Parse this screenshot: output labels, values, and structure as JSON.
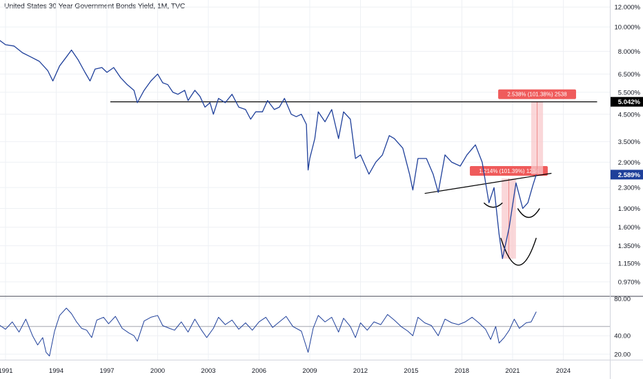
{
  "title": "United States 30 Year Government Bonds Yield, 1M, TVC",
  "colors": {
    "series": "#1e3f9a",
    "guide": "#000000",
    "measure_fill": "#f8c9cc",
    "measure_label": "#ef5b5b",
    "price_badge": "#1e3f9a",
    "grid": "#eef0f4",
    "axis_text": "#131722"
  },
  "chart_data": {
    "type": "line",
    "x_tick_labels": [
      "1991",
      "1994",
      "1997",
      "2000",
      "2003",
      "2006",
      "2009",
      "2012",
      "2015",
      "2018",
      "2021",
      "2024"
    ],
    "main_pane": {
      "scale": "log",
      "y_tick_labels": [
        "12.000%",
        "10.000%",
        "8.000%",
        "6.500%",
        "5.500%",
        "4.500%",
        "3.500%",
        "2.900%",
        "2.300%",
        "1.900%",
        "1.600%",
        "1.350%",
        "1.150%",
        "0.970%"
      ],
      "y_ticks": [
        12.0,
        10.0,
        8.0,
        6.5,
        5.5,
        4.5,
        3.5,
        2.9,
        2.3,
        1.9,
        1.6,
        1.35,
        1.15,
        0.97
      ],
      "ylim": [
        0.85,
        12.8
      ],
      "series": [
        {
          "points": [
            [
              1990.6,
              8.9
            ],
            [
              1991.0,
              8.5
            ],
            [
              1991.5,
              8.4
            ],
            [
              1992.0,
              7.9
            ],
            [
              1992.5,
              7.6
            ],
            [
              1993.0,
              7.3
            ],
            [
              1993.5,
              6.7
            ],
            [
              1993.8,
              6.1
            ],
            [
              1994.2,
              7.0
            ],
            [
              1994.6,
              7.6
            ],
            [
              1994.9,
              8.1
            ],
            [
              1995.3,
              7.4
            ],
            [
              1995.7,
              6.6
            ],
            [
              1996.0,
              6.1
            ],
            [
              1996.3,
              6.8
            ],
            [
              1996.7,
              6.9
            ],
            [
              1997.0,
              6.6
            ],
            [
              1997.4,
              6.9
            ],
            [
              1997.8,
              6.3
            ],
            [
              1998.2,
              5.9
            ],
            [
              1998.6,
              5.6
            ],
            [
              1998.8,
              5.0
            ],
            [
              1999.2,
              5.6
            ],
            [
              1999.6,
              6.1
            ],
            [
              2000.0,
              6.5
            ],
            [
              2000.3,
              6.0
            ],
            [
              2000.6,
              5.9
            ],
            [
              2000.9,
              5.5
            ],
            [
              2001.2,
              5.4
            ],
            [
              2001.6,
              5.6
            ],
            [
              2001.8,
              5.1
            ],
            [
              2002.2,
              5.6
            ],
            [
              2002.5,
              5.3
            ],
            [
              2002.8,
              4.8
            ],
            [
              2003.1,
              5.0
            ],
            [
              2003.3,
              4.5
            ],
            [
              2003.6,
              5.2
            ],
            [
              2004.0,
              5.0
            ],
            [
              2004.4,
              5.4
            ],
            [
              2004.8,
              4.8
            ],
            [
              2005.2,
              4.7
            ],
            [
              2005.5,
              4.3
            ],
            [
              2005.8,
              4.6
            ],
            [
              2006.2,
              4.6
            ],
            [
              2006.5,
              5.1
            ],
            [
              2006.9,
              4.7
            ],
            [
              2007.2,
              4.8
            ],
            [
              2007.5,
              5.2
            ],
            [
              2007.9,
              4.5
            ],
            [
              2008.2,
              4.4
            ],
            [
              2008.5,
              4.5
            ],
            [
              2008.8,
              4.1
            ],
            [
              2008.9,
              2.7
            ],
            [
              2009.0,
              3.0
            ],
            [
              2009.3,
              3.6
            ],
            [
              2009.5,
              4.6
            ],
            [
              2009.9,
              4.2
            ],
            [
              2010.3,
              4.7
            ],
            [
              2010.7,
              3.6
            ],
            [
              2011.0,
              4.6
            ],
            [
              2011.4,
              4.3
            ],
            [
              2011.7,
              3.0
            ],
            [
              2012.0,
              3.1
            ],
            [
              2012.5,
              2.6
            ],
            [
              2012.9,
              2.9
            ],
            [
              2013.3,
              3.1
            ],
            [
              2013.7,
              3.7
            ],
            [
              2014.0,
              3.6
            ],
            [
              2014.5,
              3.3
            ],
            [
              2014.9,
              2.6
            ],
            [
              2015.1,
              2.25
            ],
            [
              2015.4,
              3.0
            ],
            [
              2015.9,
              3.0
            ],
            [
              2016.3,
              2.6
            ],
            [
              2016.6,
              2.2
            ],
            [
              2017.0,
              3.1
            ],
            [
              2017.4,
              2.9
            ],
            [
              2017.9,
              2.8
            ],
            [
              2018.3,
              3.1
            ],
            [
              2018.8,
              3.4
            ],
            [
              2019.2,
              2.9
            ],
            [
              2019.6,
              2.0
            ],
            [
              2019.9,
              2.3
            ],
            [
              2020.2,
              1.5
            ],
            [
              2020.4,
              1.2
            ],
            [
              2020.8,
              1.6
            ],
            [
              2021.2,
              2.4
            ],
            [
              2021.6,
              1.9
            ],
            [
              2021.9,
              2.0
            ],
            [
              2022.2,
              2.35
            ],
            [
              2022.4,
              2.589
            ]
          ]
        }
      ],
      "last_value_label": "2.589%",
      "level_value_label": "5.042%",
      "level_line": {
        "value": 5.042,
        "x_from": 1997.2,
        "x_to": 2026.0
      },
      "trend_line": {
        "from": [
          2015.8,
          2.18
        ],
        "to": [
          2023.3,
          2.62
        ]
      },
      "measures": [
        {
          "x_from": 2020.35,
          "x_to": 2021.2,
          "y_from": 1.2,
          "y_to": 2.5,
          "label": "1.214% (101.39%) 1214"
        },
        {
          "x_from": 2022.1,
          "x_to": 2022.8,
          "y_from": 2.6,
          "y_to": 5.042,
          "label": "2.538% (101.38%) 2538"
        }
      ],
      "arcs": [
        {
          "x_from": 2019.3,
          "x_to": 2020.4,
          "y_top": 2.0,
          "y_bottom": 1.92
        },
        {
          "x_from": 2020.3,
          "x_to": 2022.4,
          "y_top": 1.45,
          "y_bottom": 1.13
        },
        {
          "x_from": 2021.3,
          "x_to": 2022.6,
          "y_top": 1.9,
          "y_bottom": 1.75
        }
      ]
    },
    "sub_pane": {
      "y_tick_labels": [
        "80.00",
        "40.00",
        "20.00"
      ],
      "y_ticks": [
        80,
        40,
        20
      ],
      "ylim": [
        14,
        82
      ],
      "reference_line": 50,
      "series": [
        {
          "points": [
            [
              1990.6,
              52
            ],
            [
              1991.0,
              47
            ],
            [
              1991.4,
              55
            ],
            [
              1991.8,
              44
            ],
            [
              1992.2,
              58
            ],
            [
              1992.6,
              40
            ],
            [
              1992.9,
              30
            ],
            [
              1993.2,
              38
            ],
            [
              1993.4,
              22
            ],
            [
              1993.6,
              18
            ],
            [
              1993.9,
              45
            ],
            [
              1994.2,
              62
            ],
            [
              1994.6,
              70
            ],
            [
              1994.9,
              64
            ],
            [
              1995.2,
              55
            ],
            [
              1995.5,
              48
            ],
            [
              1995.8,
              46
            ],
            [
              1996.1,
              38
            ],
            [
              1996.4,
              57
            ],
            [
              1996.8,
              60
            ],
            [
              1997.1,
              53
            ],
            [
              1997.5,
              61
            ],
            [
              1997.9,
              48
            ],
            [
              1998.3,
              43
            ],
            [
              1998.6,
              40
            ],
            [
              1998.8,
              34
            ],
            [
              1999.2,
              56
            ],
            [
              1999.6,
              60
            ],
            [
              2000.0,
              62
            ],
            [
              2000.3,
              51
            ],
            [
              2000.7,
              48
            ],
            [
              2001.0,
              46
            ],
            [
              2001.4,
              55
            ],
            [
              2001.8,
              44
            ],
            [
              2002.2,
              58
            ],
            [
              2002.6,
              46
            ],
            [
              2002.9,
              38
            ],
            [
              2003.3,
              48
            ],
            [
              2003.6,
              60
            ],
            [
              2004.0,
              52
            ],
            [
              2004.4,
              57
            ],
            [
              2004.8,
              47
            ],
            [
              2005.2,
              54
            ],
            [
              2005.6,
              46
            ],
            [
              2006.0,
              55
            ],
            [
              2006.4,
              60
            ],
            [
              2006.8,
              49
            ],
            [
              2007.2,
              55
            ],
            [
              2007.6,
              61
            ],
            [
              2008.0,
              50
            ],
            [
              2008.5,
              45
            ],
            [
              2008.9,
              22
            ],
            [
              2009.2,
              48
            ],
            [
              2009.5,
              62
            ],
            [
              2009.9,
              55
            ],
            [
              2010.3,
              60
            ],
            [
              2010.7,
              44
            ],
            [
              2011.0,
              59
            ],
            [
              2011.4,
              50
            ],
            [
              2011.7,
              38
            ],
            [
              2012.0,
              54
            ],
            [
              2012.4,
              46
            ],
            [
              2012.8,
              55
            ],
            [
              2013.2,
              52
            ],
            [
              2013.6,
              63
            ],
            [
              2014.0,
              57
            ],
            [
              2014.4,
              50
            ],
            [
              2014.8,
              45
            ],
            [
              2015.1,
              40
            ],
            [
              2015.4,
              60
            ],
            [
              2015.8,
              54
            ],
            [
              2016.2,
              51
            ],
            [
              2016.6,
              40
            ],
            [
              2017.0,
              58
            ],
            [
              2017.4,
              54
            ],
            [
              2017.8,
              52
            ],
            [
              2018.2,
              55
            ],
            [
              2018.6,
              60
            ],
            [
              2019.0,
              54
            ],
            [
              2019.4,
              47
            ],
            [
              2019.7,
              36
            ],
            [
              2020.0,
              50
            ],
            [
              2020.2,
              32
            ],
            [
              2020.5,
              38
            ],
            [
              2020.8,
              46
            ],
            [
              2021.1,
              58
            ],
            [
              2021.4,
              48
            ],
            [
              2021.8,
              54
            ],
            [
              2022.1,
              55
            ],
            [
              2022.4,
              66
            ]
          ]
        }
      ]
    }
  }
}
